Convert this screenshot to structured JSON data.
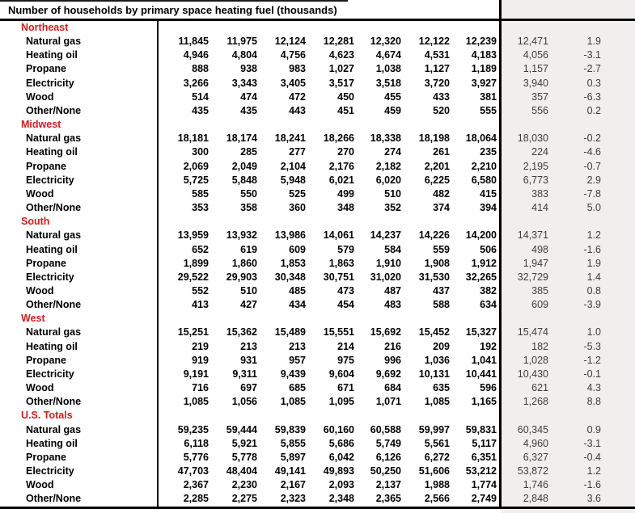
{
  "title": "Number of households by primary space heating fuel (thousands)",
  "colors": {
    "region_red": "#cf2020",
    "shaded_bg": "#f0efed",
    "rule_black": "#000000",
    "secondary_text": "#3d3d3d"
  },
  "table": {
    "num_history_columns": 7,
    "sections": [
      {
        "region": "Northeast",
        "rows": [
          {
            "fuel": "Natural gas",
            "values": [
              "11,845",
              "11,975",
              "12,124",
              "12,281",
              "12,320",
              "12,122",
              "12,239"
            ],
            "latest": "12,471",
            "pct_change": "1.9"
          },
          {
            "fuel": "Heating oil",
            "values": [
              "4,946",
              "4,804",
              "4,756",
              "4,623",
              "4,674",
              "4,531",
              "4,183"
            ],
            "latest": "4,056",
            "pct_change": "-3.1"
          },
          {
            "fuel": "Propane",
            "values": [
              "888",
              "938",
              "983",
              "1,027",
              "1,038",
              "1,127",
              "1,189"
            ],
            "latest": "1,157",
            "pct_change": "-2.7"
          },
          {
            "fuel": "Electricity",
            "values": [
              "3,266",
              "3,343",
              "3,405",
              "3,517",
              "3,518",
              "3,720",
              "3,927"
            ],
            "latest": "3,940",
            "pct_change": "0.3"
          },
          {
            "fuel": "Wood",
            "values": [
              "514",
              "474",
              "472",
              "450",
              "455",
              "433",
              "381"
            ],
            "latest": "357",
            "pct_change": "-6.3"
          },
          {
            "fuel": "Other/None",
            "values": [
              "435",
              "435",
              "443",
              "451",
              "459",
              "520",
              "555"
            ],
            "latest": "556",
            "pct_change": "0.2"
          }
        ]
      },
      {
        "region": "Midwest",
        "rows": [
          {
            "fuel": "Natural gas",
            "values": [
              "18,181",
              "18,174",
              "18,241",
              "18,266",
              "18,338",
              "18,198",
              "18,064"
            ],
            "latest": "18,030",
            "pct_change": "-0.2"
          },
          {
            "fuel": "Heating oil",
            "values": [
              "300",
              "285",
              "277",
              "270",
              "274",
              "261",
              "235"
            ],
            "latest": "224",
            "pct_change": "-4.6"
          },
          {
            "fuel": "Propane",
            "values": [
              "2,069",
              "2,049",
              "2,104",
              "2,176",
              "2,182",
              "2,201",
              "2,210"
            ],
            "latest": "2,195",
            "pct_change": "-0.7"
          },
          {
            "fuel": "Electricity",
            "values": [
              "5,725",
              "5,848",
              "5,948",
              "6,021",
              "6,020",
              "6,225",
              "6,580"
            ],
            "latest": "6,773",
            "pct_change": "2.9"
          },
          {
            "fuel": "Wood",
            "values": [
              "585",
              "550",
              "525",
              "499",
              "510",
              "482",
              "415"
            ],
            "latest": "383",
            "pct_change": "-7.8"
          },
          {
            "fuel": "Other/None",
            "values": [
              "353",
              "358",
              "360",
              "348",
              "352",
              "374",
              "394"
            ],
            "latest": "414",
            "pct_change": "5.0"
          }
        ]
      },
      {
        "region": "South",
        "rows": [
          {
            "fuel": "Natural gas",
            "values": [
              "13,959",
              "13,932",
              "13,986",
              "14,061",
              "14,237",
              "14,226",
              "14,200"
            ],
            "latest": "14,371",
            "pct_change": "1.2"
          },
          {
            "fuel": "Heating oil",
            "values": [
              "652",
              "619",
              "609",
              "579",
              "584",
              "559",
              "506"
            ],
            "latest": "498",
            "pct_change": "-1.6"
          },
          {
            "fuel": "Propane",
            "values": [
              "1,899",
              "1,860",
              "1,853",
              "1,863",
              "1,910",
              "1,908",
              "1,912"
            ],
            "latest": "1,947",
            "pct_change": "1.9"
          },
          {
            "fuel": "Electricity",
            "values": [
              "29,522",
              "29,903",
              "30,348",
              "30,751",
              "31,020",
              "31,530",
              "32,265"
            ],
            "latest": "32,729",
            "pct_change": "1.4"
          },
          {
            "fuel": "Wood",
            "values": [
              "552",
              "510",
              "485",
              "473",
              "487",
              "437",
              "382"
            ],
            "latest": "385",
            "pct_change": "0.8"
          },
          {
            "fuel": "Other/None",
            "values": [
              "413",
              "427",
              "434",
              "454",
              "483",
              "588",
              "634"
            ],
            "latest": "609",
            "pct_change": "-3.9"
          }
        ]
      },
      {
        "region": "West",
        "rows": [
          {
            "fuel": "Natural gas",
            "values": [
              "15,251",
              "15,362",
              "15,489",
              "15,551",
              "15,692",
              "15,452",
              "15,327"
            ],
            "latest": "15,474",
            "pct_change": "1.0"
          },
          {
            "fuel": "Heating oil",
            "values": [
              "219",
              "213",
              "213",
              "214",
              "216",
              "209",
              "192"
            ],
            "latest": "182",
            "pct_change": "-5.3"
          },
          {
            "fuel": "Propane",
            "values": [
              "919",
              "931",
              "957",
              "975",
              "996",
              "1,036",
              "1,041"
            ],
            "latest": "1,028",
            "pct_change": "-1.2"
          },
          {
            "fuel": "Electricity",
            "values": [
              "9,191",
              "9,311",
              "9,439",
              "9,604",
              "9,692",
              "10,131",
              "10,441"
            ],
            "latest": "10,430",
            "pct_change": "-0.1"
          },
          {
            "fuel": "Wood",
            "values": [
              "716",
              "697",
              "685",
              "671",
              "684",
              "635",
              "596"
            ],
            "latest": "621",
            "pct_change": "4.3"
          },
          {
            "fuel": "Other/None",
            "values": [
              "1,085",
              "1,056",
              "1,085",
              "1,095",
              "1,071",
              "1,085",
              "1,165"
            ],
            "latest": "1,268",
            "pct_change": "8.8"
          }
        ]
      },
      {
        "region": "U.S. Totals",
        "rows": [
          {
            "fuel": "Natural gas",
            "values": [
              "59,235",
              "59,444",
              "59,839",
              "60,160",
              "60,588",
              "59,997",
              "59,831"
            ],
            "latest": "60,345",
            "pct_change": "0.9"
          },
          {
            "fuel": "Heating oil",
            "values": [
              "6,118",
              "5,921",
              "5,855",
              "5,686",
              "5,749",
              "5,561",
              "5,117"
            ],
            "latest": "4,960",
            "pct_change": "-3.1"
          },
          {
            "fuel": "Propane",
            "values": [
              "5,776",
              "5,778",
              "5,897",
              "6,042",
              "6,126",
              "6,272",
              "6,351"
            ],
            "latest": "6,327",
            "pct_change": "-0.4"
          },
          {
            "fuel": "Electricity",
            "values": [
              "47,703",
              "48,404",
              "49,141",
              "49,893",
              "50,250",
              "51,606",
              "53,212"
            ],
            "latest": "53,872",
            "pct_change": "1.2"
          },
          {
            "fuel": "Wood",
            "values": [
              "2,367",
              "2,230",
              "2,167",
              "2,093",
              "2,137",
              "1,988",
              "1,774"
            ],
            "latest": "1,746",
            "pct_change": "-1.6"
          },
          {
            "fuel": "Other/None",
            "values": [
              "2,285",
              "2,275",
              "2,323",
              "2,348",
              "2,365",
              "2,566",
              "2,749"
            ],
            "latest": "2,848",
            "pct_change": "3.6"
          }
        ]
      }
    ]
  }
}
